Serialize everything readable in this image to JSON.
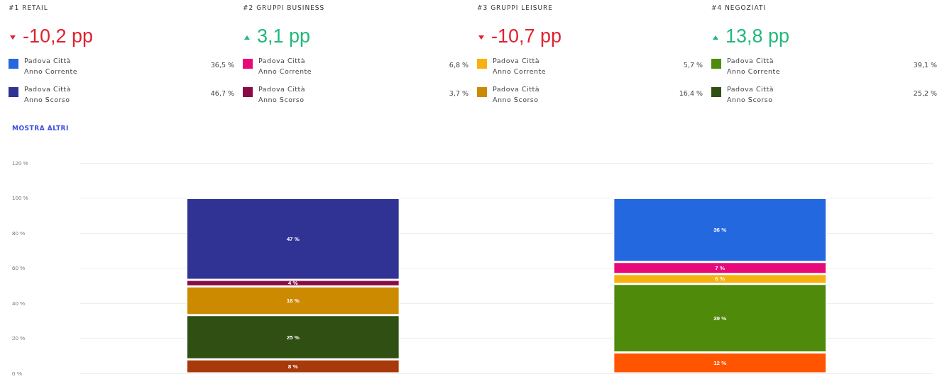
{
  "chart_data": [
    {
      "type": "other",
      "title": "#1 RETAIL",
      "subtitle": "-10,2 pp",
      "categories": [
        "Padova Città Anno Corrente",
        "Padova Città Anno Scorso"
      ],
      "values": [
        36.5,
        46.7
      ],
      "value_labels": [
        "36,5 %",
        "46,7 %"
      ],
      "colors": [
        "#2468e0",
        "#303394"
      ]
    },
    {
      "type": "other",
      "title": "#2 GRUPPI BUSINESS",
      "subtitle": "3,1 pp",
      "categories": [
        "Padova Città Anno Corrente",
        "Padova Città Anno Scorso"
      ],
      "values": [
        6.8,
        3.7
      ],
      "value_labels": [
        "6,8 %",
        "3,7 %"
      ],
      "colors": [
        "#e8087a",
        "#8a0a47"
      ]
    },
    {
      "type": "other",
      "title": "#3 GRUPPI LEISURE",
      "subtitle": "-10,7 pp",
      "categories": [
        "Padova Città Anno Corrente",
        "Padova Città Anno Scorso"
      ],
      "values": [
        5.7,
        16.4
      ],
      "value_labels": [
        "5,7 %",
        "16,4 %"
      ],
      "colors": [
        "#f7b20f",
        "#cc8a00"
      ]
    },
    {
      "type": "other",
      "title": "#4 NEGOZIATI",
      "subtitle": "13,8 pp",
      "categories": [
        "Padova Città Anno Corrente",
        "Padova Città Anno Scorso"
      ],
      "values": [
        39.1,
        25.2
      ],
      "value_labels": [
        "39,1 %",
        "25,2 %"
      ],
      "colors": [
        "#4f8a0b",
        "#2f4f13"
      ]
    },
    {
      "type": "bar",
      "stacked": true,
      "annotations": [
        "MOSTRA ALTRI"
      ],
      "categories": [
        null,
        null
      ],
      "ylim": [
        0,
        120
      ],
      "yticks": [
        {
          "value": 0,
          "label": "0 %"
        },
        {
          "value": 20,
          "label": "20 %"
        },
        {
          "value": 40,
          "label": "40 %"
        },
        {
          "value": 60,
          "label": "60 %"
        },
        {
          "value": 80,
          "label": "80 %"
        },
        {
          "value": 100,
          "label": "100 %"
        },
        {
          "value": 120,
          "label": "120 %"
        }
      ],
      "grid": "y",
      "series": [
        {
          "colors": [
            "#a8390a",
            "#ff5500"
          ],
          "values": [
            8.0,
            11.9
          ],
          "value_labels": [
            "8 %",
            "12 %"
          ]
        },
        {
          "colors": [
            "#2f4f13",
            "#4f8a0b"
          ],
          "values": [
            25.2,
            39.1
          ],
          "value_labels": [
            "25 %",
            "39 %"
          ]
        },
        {
          "colors": [
            "#cc8a00",
            "#f7b20f"
          ],
          "values": [
            16.4,
            5.7
          ],
          "value_labels": [
            "16 %",
            "6 %"
          ]
        },
        {
          "colors": [
            "#8a0a47",
            "#e8087a"
          ],
          "values": [
            3.7,
            6.8
          ],
          "value_labels": [
            "4 %",
            "7 %"
          ]
        },
        {
          "colors": [
            "#303394",
            "#2468e0"
          ],
          "values": [
            46.7,
            36.5
          ],
          "value_labels": [
            "47 %",
            "36 %"
          ]
        }
      ]
    }
  ]
}
